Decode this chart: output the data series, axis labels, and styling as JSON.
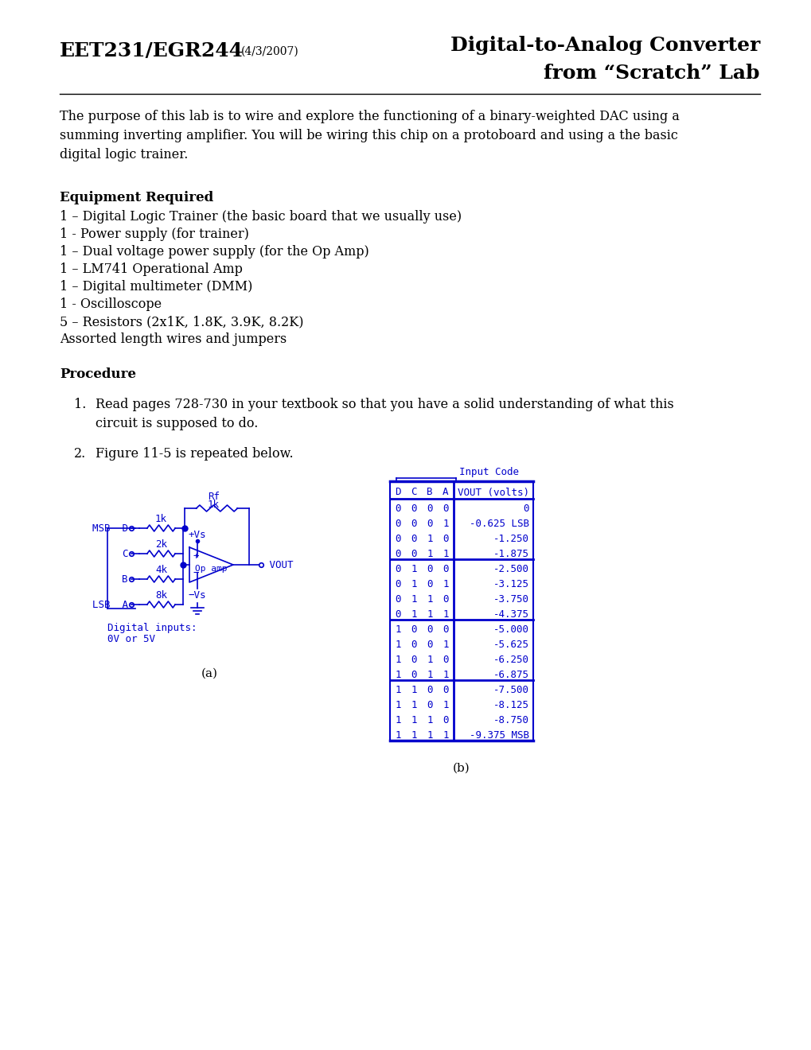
{
  "title_left": "EET231/EGR244",
  "title_left_date": "(4/3/2007)",
  "title_right_line1": "Digital-to-Analog Converter",
  "title_right_line2": "from “Scratch” Lab",
  "intro_text": "The purpose of this lab is to wire and explore the functioning of a binary-weighted DAC using a\nsumming inverting amplifier. You will be wiring this chip on a protoboard and using a the basic\ndigital logic trainer.",
  "equip_header": "Equipment Required",
  "equip_items": [
    "1 – Digital Logic Trainer (the basic board that we usually use)",
    "1 - Power supply (for trainer)",
    "1 – Dual voltage power supply (for the Op Amp)",
    "1 – LM741 Operational Amp",
    "1 – Digital multimeter (DMM)",
    "1 - Oscilloscope",
    "5 – Resistors (2x1K, 1.8K, 3.9K, 8.2K)",
    "Assorted length wires and jumpers"
  ],
  "proc_header": "Procedure",
  "proc_item1": "Read pages 728-730 in your textbook so that you have a solid understanding of what this\ncircuit is supposed to do.",
  "proc_item2": "Figure 11-5 is repeated below.",
  "label_a": "(a)",
  "label_b": "(b)",
  "table_header": "Input Code",
  "table_col_headers": [
    "D",
    "C",
    "B",
    "A",
    "VOUT (volts)"
  ],
  "table_rows": [
    [
      "0",
      "0",
      "0",
      "0",
      "0"
    ],
    [
      "0",
      "0",
      "0",
      "1",
      "-0.625 LSB"
    ],
    [
      "0",
      "0",
      "1",
      "0",
      "-1.250"
    ],
    [
      "0",
      "0",
      "1",
      "1",
      "-1.875"
    ],
    [
      "0",
      "1",
      "0",
      "0",
      "-2.500"
    ],
    [
      "0",
      "1",
      "0",
      "1",
      "-3.125"
    ],
    [
      "0",
      "1",
      "1",
      "0",
      "-3.750"
    ],
    [
      "0",
      "1",
      "1",
      "1",
      "-4.375"
    ],
    [
      "1",
      "0",
      "0",
      "0",
      "-5.000"
    ],
    [
      "1",
      "0",
      "0",
      "1",
      "-5.625"
    ],
    [
      "1",
      "0",
      "1",
      "0",
      "-6.250"
    ],
    [
      "1",
      "0",
      "1",
      "1",
      "-6.875"
    ],
    [
      "1",
      "1",
      "0",
      "0",
      "-7.500"
    ],
    [
      "1",
      "1",
      "0",
      "1",
      "-8.125"
    ],
    [
      "1",
      "1",
      "1",
      "0",
      "-8.750"
    ],
    [
      "1",
      "1",
      "1",
      "1",
      "-9.375 MSB"
    ]
  ],
  "circuit_color": "#0000cc",
  "text_color": "#000000",
  "bg_color": "#ffffff",
  "body_fontsize": 11.5,
  "header_fontsize": 12,
  "title_fontsize": 18,
  "title_date_fontsize": 10
}
